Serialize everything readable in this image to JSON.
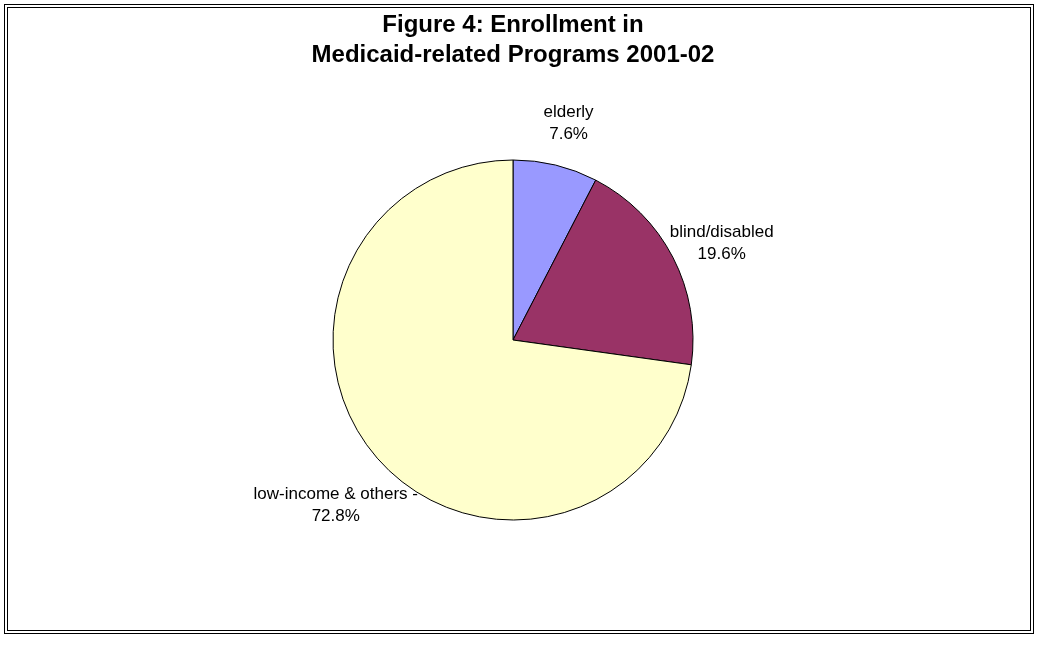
{
  "chart_data": {
    "type": "pie",
    "title": "Figure 4:  Enrollment in Medicaid-related Programs  2001-02",
    "categories": [
      "elderly",
      "blind/disabled",
      "low-income & others -"
    ],
    "values": [
      7.6,
      19.6,
      72.8
    ],
    "colors": [
      "#9999ff",
      "#993366",
      "#ffffcc"
    ],
    "value_labels": [
      "7.6%",
      "19.6%",
      "72.8%"
    ],
    "legend": false
  }
}
